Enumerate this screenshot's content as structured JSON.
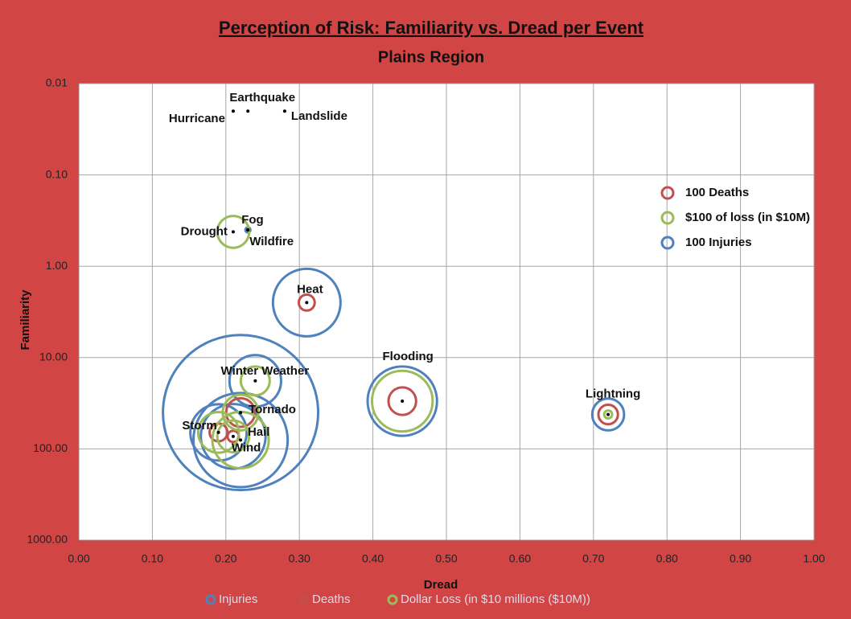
{
  "chart_data": {
    "type": "bubble",
    "title": "Perception of Risk: Familiarity vs. Dread per Event",
    "subtitle": "Plains Region",
    "x_label": "Dread",
    "y_label": "Familiarity",
    "xlim": [
      0,
      1
    ],
    "xticks": [
      {
        "value": 0,
        "label": "0.00"
      },
      {
        "value": 0.1,
        "label": "0.10"
      },
      {
        "value": 0.2,
        "label": "0.20"
      },
      {
        "value": 0.3,
        "label": "0.30"
      },
      {
        "value": 0.4,
        "label": "0.40"
      },
      {
        "value": 0.5,
        "label": "0.50"
      },
      {
        "value": 0.6,
        "label": "0.60"
      },
      {
        "value": 0.7,
        "label": "0.70"
      },
      {
        "value": 0.8,
        "label": "0.80"
      },
      {
        "value": 0.9,
        "label": "0.90"
      },
      {
        "value": 1,
        "label": "1.00"
      }
    ],
    "ylim": [
      0.01,
      1000
    ],
    "y_scale": "log",
    "y_reversed": true,
    "yticks": [
      {
        "value": 0.01,
        "label": "0.01"
      },
      {
        "value": 0.1,
        "label": "0.10"
      },
      {
        "value": 1,
        "label": "1.00"
      },
      {
        "value": 10,
        "label": "10.00"
      },
      {
        "value": 100,
        "label": "100.00"
      },
      {
        "value": 1000,
        "label": "1000.00"
      }
    ],
    "grid": true,
    "legend": "bottom",
    "points": {
      "labels": [
        "Hurricane",
        "Earthquake",
        "Landslide",
        "Fog",
        "Drought",
        "Wildfire",
        "Heat",
        "Winter Weather",
        "Flooding",
        "Lightning",
        "Tornado",
        "Storm",
        "Hail",
        "Wind"
      ],
      "x": [
        0.21,
        0.23,
        0.28,
        0.23,
        0.21,
        0.23,
        0.31,
        0.24,
        0.44,
        0.72,
        0.22,
        0.19,
        0.21,
        0.22
      ],
      "y": [
        0.02,
        0.02,
        0.02,
        0.4,
        0.42,
        0.4,
        2.5,
        18,
        30,
        42,
        40,
        66,
        73,
        80
      ]
    },
    "series": [
      {
        "name": "Injuries",
        "color": "#4f81bd",
        "sizes": [
          null,
          null,
          null,
          20,
          null,
          null,
          3600,
          2100,
          3800,
          800,
          19000,
          2500,
          3300,
          7000
        ]
      },
      {
        "name": "Deaths",
        "color": "#c0504d",
        "sizes": [
          null,
          null,
          null,
          null,
          null,
          null,
          200,
          null,
          600,
          300,
          650,
          250,
          100,
          null
        ]
      },
      {
        "name": "Dollar Loss (in $10 millions ($10M))",
        "color": "#9bbb59",
        "sizes": [
          null,
          null,
          null,
          null,
          800,
          null,
          null,
          660,
          2900,
          50,
          1000,
          1300,
          800,
          2500
        ]
      }
    ],
    "size_key": [
      {
        "label": "100 Deaths",
        "size": 100,
        "color": "#c0504d"
      },
      {
        "label": "$100 of loss (in $10M)",
        "size": 100,
        "color": "#9bbb59"
      },
      {
        "label": "100 Injuries",
        "size": 100,
        "color": "#4f81bd"
      }
    ]
  }
}
